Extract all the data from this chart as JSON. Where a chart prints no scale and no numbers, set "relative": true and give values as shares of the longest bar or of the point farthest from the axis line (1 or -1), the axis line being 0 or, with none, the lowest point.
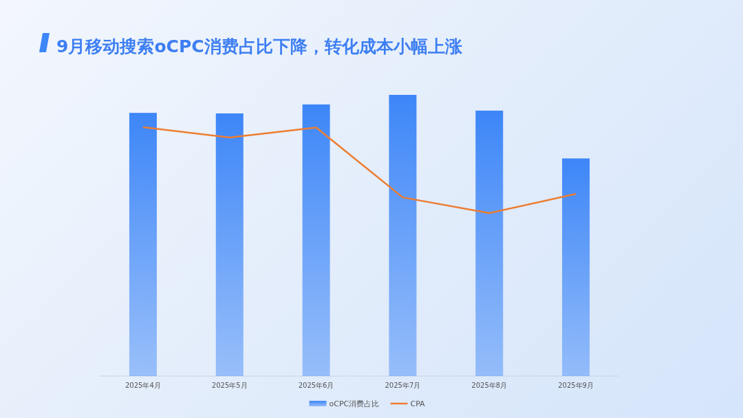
{
  "chart_data": {
    "type": "bar",
    "title": "9月移动搜索oCPC消费占比下降，转化成本小幅上涨",
    "relative": true,
    "legend": "bottom",
    "categories": [
      "2025年4月",
      "2025年5月",
      "2025年6月",
      "2025年7月",
      "2025年8月",
      "2025年9月"
    ],
    "series": [
      {
        "name": "oCPC消费占比",
        "color": "#3d86f8",
        "values": [
          0.936,
          0.934,
          0.966,
          1,
          0.944,
          0.774
        ]
      },
      {
        "name": "CPA",
        "type": "line",
        "axis": "y2",
        "color": "#ed7d31",
        "values": [
          1,
          0.959,
          0.999,
          0.718,
          0.655,
          0.732
        ]
      }
    ]
  }
}
